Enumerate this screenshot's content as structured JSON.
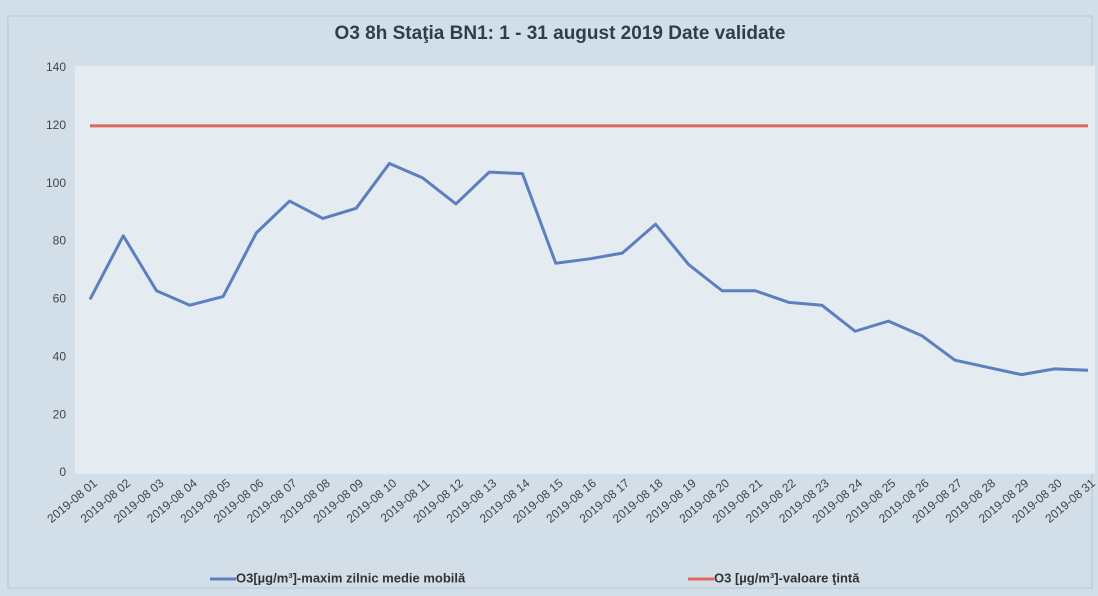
{
  "chart_data": {
    "type": "line",
    "title": "O3 8h Staţia BN1: 1 - 31 august 2019 Date validate",
    "categories": [
      "2019-08 01",
      "2019-08 02",
      "2019-08 03",
      "2019-08 04",
      "2019-08 05",
      "2019-08 06",
      "2019-08 07",
      "2019-08 08",
      "2019-08 09",
      "2019-08 10",
      "2019-08 11",
      "2019-08 12",
      "2019-08 13",
      "2019-08 14",
      "2019-08 15",
      "2019-08 16",
      "2019-08 17",
      "2019-08 18",
      "2019-08 19",
      "2019-08 20",
      "2019-08 21",
      "2019-08 22",
      "2019-08 23",
      "2019-08 24",
      "2019-08 25",
      "2019-08 26",
      "2019-08 27",
      "2019-08 28",
      "2019-08 29",
      "2019-08 30",
      "2019-08 31"
    ],
    "series": [
      {
        "name": "O3[µg/m³]-maxim zilnic medie mobilă",
        "color": "#5b7fbf",
        "values": [
          60,
          82,
          63,
          58,
          61,
          83,
          94,
          88,
          91.5,
          107,
          102,
          93,
          104,
          103.5,
          72.5,
          74,
          76,
          86,
          72,
          63,
          63,
          59,
          58,
          49,
          52.5,
          47.5,
          39,
          36.5,
          34,
          36,
          35.5
        ]
      },
      {
        "name": "O3 [µg/m³]-valoare ţintă",
        "color": "#e0675a",
        "values": [
          120,
          120,
          120,
          120,
          120,
          120,
          120,
          120,
          120,
          120,
          120,
          120,
          120,
          120,
          120,
          120,
          120,
          120,
          120,
          120,
          120,
          120,
          120,
          120,
          120,
          120,
          120,
          120,
          120,
          120,
          120
        ]
      }
    ],
    "ylim": [
      0,
      140
    ],
    "yticks": [
      0,
      20,
      40,
      60,
      80,
      100,
      120,
      140
    ],
    "grid": false
  }
}
